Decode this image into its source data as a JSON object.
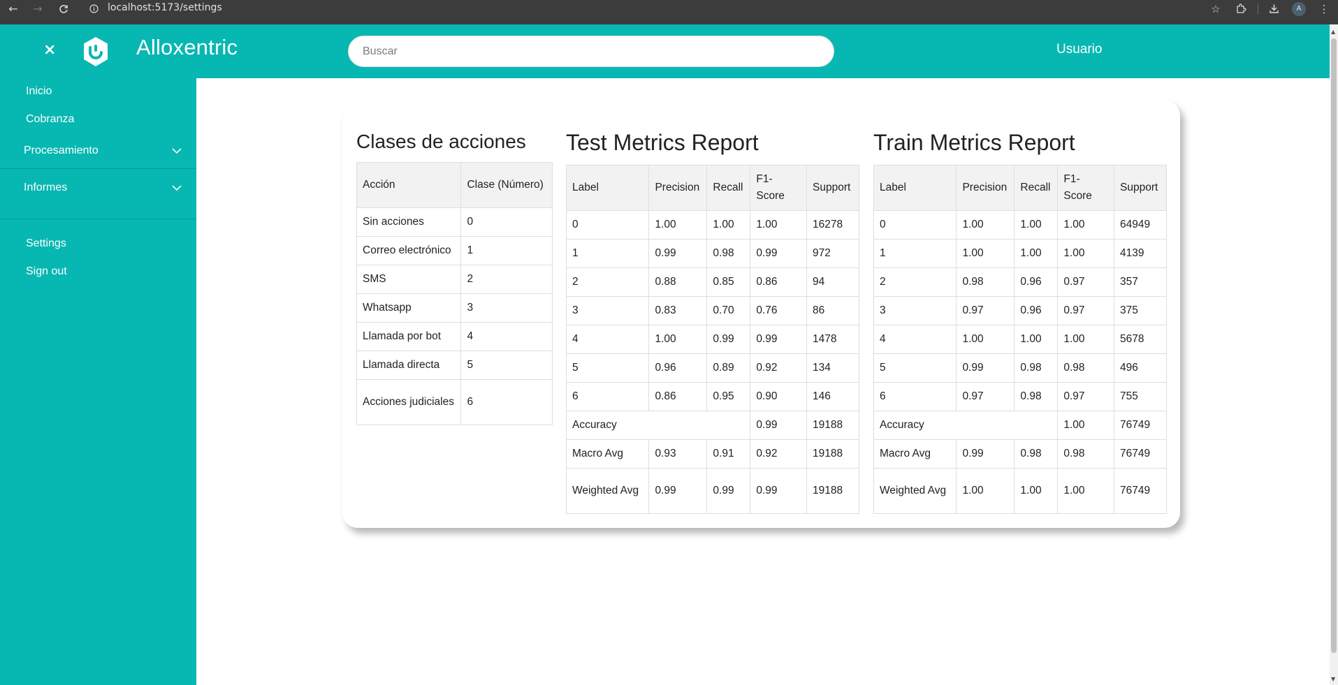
{
  "browser": {
    "url": "localhost:5173/settings",
    "avatar_letter": "A"
  },
  "header": {
    "close_icon": "×",
    "brand": "Alloxentric",
    "search_placeholder": "Buscar",
    "user_label": "Usuario"
  },
  "sidebar": {
    "items": [
      {
        "label": "Inicio"
      },
      {
        "label": "Cobranza"
      },
      {
        "label": "Procesamiento"
      },
      {
        "label": "Informes"
      },
      {
        "label": "Settings"
      },
      {
        "label": "Sign out"
      }
    ]
  },
  "classes": {
    "title": "Clases de acciones",
    "headers": [
      "Acción",
      "Clase (Número)"
    ],
    "rows": [
      [
        "Sin acciones",
        "0"
      ],
      [
        "Correo electrónico",
        "1"
      ],
      [
        "SMS",
        "2"
      ],
      [
        "Whatsapp",
        "3"
      ],
      [
        "Llamada por bot",
        "4"
      ],
      [
        "Llamada directa",
        "5"
      ],
      [
        "Acciones judiciales",
        "6"
      ]
    ]
  },
  "test_report": {
    "title": "Test Metrics Report",
    "headers": [
      "Label",
      "Precision",
      "Recall",
      "F1-Score",
      "Support"
    ],
    "rows": [
      [
        "0",
        "1.00",
        "1.00",
        "1.00",
        "16278"
      ],
      [
        "1",
        "0.99",
        "0.98",
        "0.99",
        "972"
      ],
      [
        "2",
        "0.88",
        "0.85",
        "0.86",
        "94"
      ],
      [
        "3",
        "0.83",
        "0.70",
        "0.76",
        "86"
      ],
      [
        "4",
        "1.00",
        "0.99",
        "0.99",
        "1478"
      ],
      [
        "5",
        "0.96",
        "0.89",
        "0.92",
        "134"
      ],
      [
        "6",
        "0.86",
        "0.95",
        "0.90",
        "146"
      ]
    ],
    "accuracy": {
      "label": "Accuracy",
      "f1": "0.99",
      "support": "19188"
    },
    "macro": [
      "Macro Avg",
      "0.93",
      "0.91",
      "0.92",
      "19188"
    ],
    "weighted": [
      "Weighted Avg",
      "0.99",
      "0.99",
      "0.99",
      "19188"
    ]
  },
  "train_report": {
    "title": "Train Metrics Report",
    "headers": [
      "Label",
      "Precision",
      "Recall",
      "F1-Score",
      "Support"
    ],
    "rows": [
      [
        "0",
        "1.00",
        "1.00",
        "1.00",
        "64949"
      ],
      [
        "1",
        "1.00",
        "1.00",
        "1.00",
        "4139"
      ],
      [
        "2",
        "0.98",
        "0.96",
        "0.97",
        "357"
      ],
      [
        "3",
        "0.97",
        "0.96",
        "0.97",
        "375"
      ],
      [
        "4",
        "1.00",
        "1.00",
        "1.00",
        "5678"
      ],
      [
        "5",
        "0.99",
        "0.98",
        "0.98",
        "496"
      ],
      [
        "6",
        "0.97",
        "0.98",
        "0.97",
        "755"
      ]
    ],
    "accuracy": {
      "label": "Accuracy",
      "f1": "1.00",
      "support": "76749"
    },
    "macro": [
      "Macro Avg",
      "0.99",
      "0.98",
      "0.98",
      "76749"
    ],
    "weighted": [
      "Weighted Avg",
      "1.00",
      "1.00",
      "1.00",
      "76749"
    ]
  },
  "colors": {
    "brand_teal": "#07b7b2",
    "chrome_bar": "#3c3c3c",
    "table_header_bg": "#f2f2f2"
  }
}
